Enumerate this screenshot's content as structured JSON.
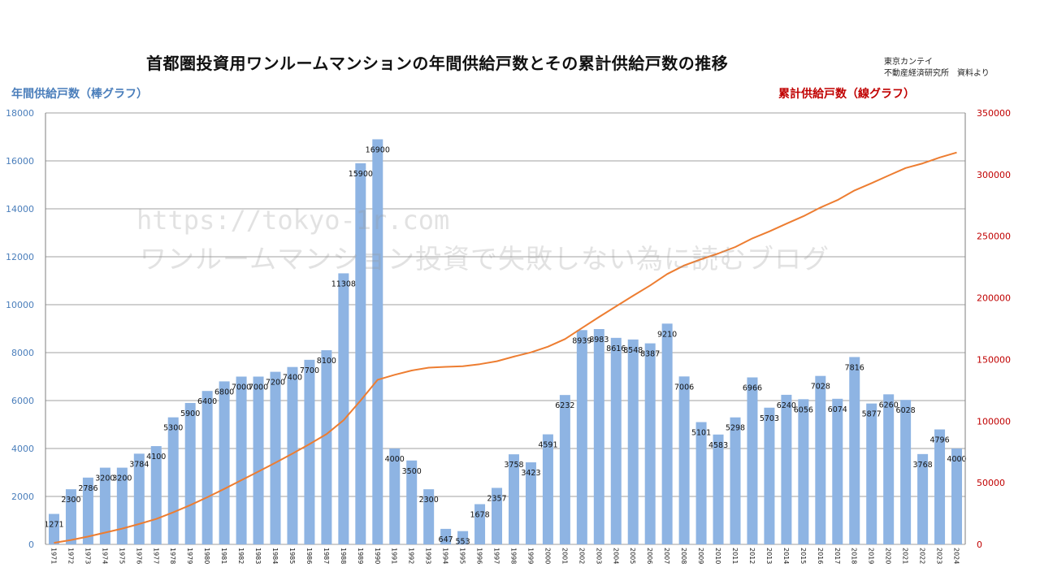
{
  "header": {
    "title": "首都圏投資用ワンルームマンションの年間供給戸数とその累計供給戸数の推移",
    "source_line1": "東京カンテイ",
    "source_line2": "不動産経済研究所　資料より"
  },
  "watermark": {
    "line1": "https://tokyo-1r.com",
    "line2": "ワンルームマンション投資で失敗しない為に読むブログ"
  },
  "colors": {
    "bar": "#8eb4e3",
    "line": "#ed7d31",
    "left_axis_text": "#4a7ebb",
    "right_axis_text": "#c00000",
    "grid": "#808080"
  },
  "chart_data": {
    "type": "bar",
    "grid": true,
    "y_left_label": "年間供給戸数（棒グラフ）",
    "y_right_label": "累計供給戸数（線グラフ）",
    "y_left_lim": [
      0,
      18000
    ],
    "y_left_ticks": [
      "0",
      "2000",
      "4000",
      "6000",
      "8000",
      "10000",
      "12000",
      "14000",
      "16000",
      "18000"
    ],
    "y_right_lim": [
      0,
      350000
    ],
    "y_right_ticks": [
      "0",
      "50000",
      "100000",
      "150000",
      "200000",
      "250000",
      "300000",
      "350000"
    ],
    "categories": [
      "1971",
      "1972",
      "1973",
      "1974",
      "1975",
      "1976",
      "1977",
      "1978",
      "1979",
      "1980",
      "1981",
      "1982",
      "1983",
      "1984",
      "1985",
      "1986",
      "1987",
      "1988",
      "1989",
      "1990",
      "1991",
      "1992",
      "1993",
      "1994",
      "1995",
      "1996",
      "1997",
      "1998",
      "1999",
      "2000",
      "2001",
      "2002",
      "2003",
      "2004",
      "2005",
      "2006",
      "2007",
      "2008",
      "2009",
      "2010",
      "2011",
      "2012",
      "2013",
      "2014",
      "2015",
      "2016",
      "2017",
      "2018",
      "2019",
      "2020",
      "2021",
      "2022",
      "2023",
      "2024"
    ],
    "series": [
      {
        "type": "bar",
        "axis": "left",
        "values": [
          1271,
          2300,
          2786,
          3200,
          3200,
          3784,
          4100,
          5300,
          5900,
          6400,
          6800,
          7000,
          7000,
          7200,
          7400,
          7700,
          8100,
          11308,
          15900,
          16900,
          4000,
          3500,
          2300,
          647,
          553,
          1678,
          2357,
          3758,
          3423,
          4591,
          6232,
          8939,
          8983,
          8616,
          8548,
          8387,
          9210,
          7006,
          5101,
          4583,
          5298,
          6966,
          5703,
          6240,
          6056,
          7028,
          6074,
          7816,
          5877,
          6260,
          6028,
          3768,
          4796,
          4000
        ]
      },
      {
        "type": "line",
        "axis": "right",
        "values": [
          1271,
          3571,
          6357,
          9557,
          12757,
          16541,
          20641,
          25941,
          31841,
          38241,
          45041,
          52041,
          59041,
          66241,
          73641,
          81341,
          89441,
          100749,
          116649,
          133549,
          137549,
          141049,
          143349,
          143996,
          144549,
          146227,
          148584,
          152342,
          155765,
          160356,
          166588,
          175527,
          184510,
          193126,
          201674,
          210061,
          219271,
          226277,
          231378,
          235961,
          241259,
          248225,
          253928,
          260168,
          266224,
          273252,
          279326,
          287142,
          293019,
          299279,
          305307,
          309075,
          313871,
          317871
        ]
      }
    ]
  }
}
